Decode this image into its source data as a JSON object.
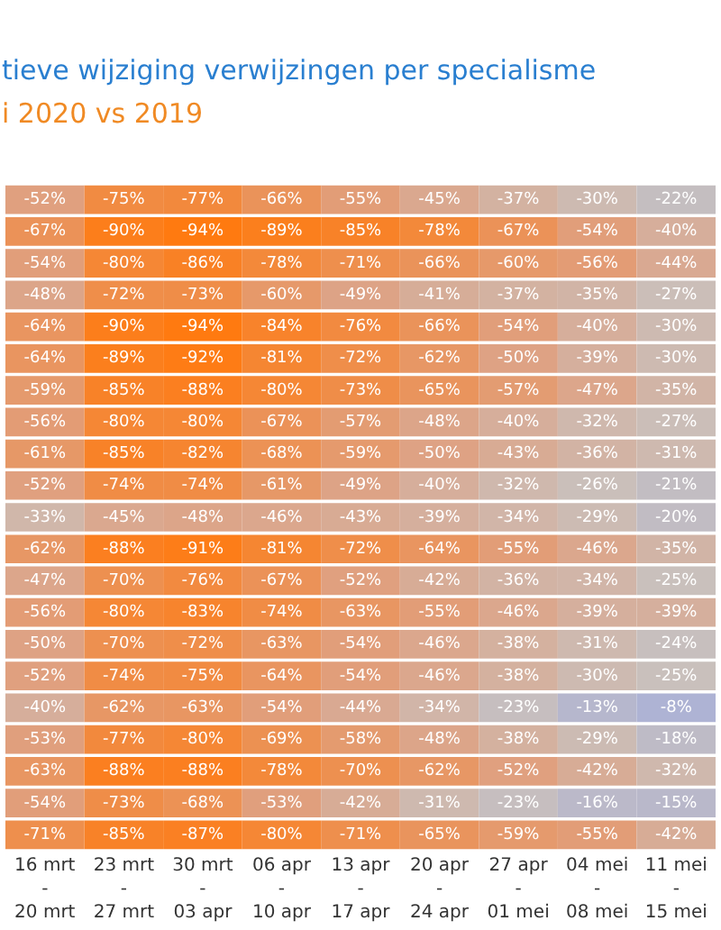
{
  "chart_data": {
    "type": "heatmap",
    "title": "tieve wijziging verwijzingen per specialisme",
    "subtitle": "i 2020 vs 2019",
    "categories": [
      "16 mrt\n-\n20 mrt",
      "23 mrt\n-\n27 mrt",
      "30 mrt\n-\n03 apr",
      "06 apr\n-\n10 apr",
      "13 apr\n-\n17 apr",
      "20 apr\n-\n24 apr",
      "27 apr\n-\n01 mei",
      "04 mei\n-\n08 mei",
      "11 mei\n-\n15 mei"
    ],
    "y_categories": [
      null,
      null,
      null,
      null,
      null,
      null,
      null,
      null,
      null,
      null,
      null,
      null,
      null,
      null,
      null,
      null,
      null,
      null,
      null,
      null,
      null
    ],
    "tick_labels": "x",
    "cells": [
      [
        -52,
        -75,
        -77,
        -66,
        -55,
        -45,
        -37,
        -30,
        -22
      ],
      [
        -67,
        -90,
        -94,
        -89,
        -85,
        -78,
        -67,
        -54,
        -40
      ],
      [
        -54,
        -80,
        -86,
        -78,
        -71,
        -66,
        -60,
        -56,
        -44
      ],
      [
        -48,
        -72,
        -73,
        -60,
        -49,
        -41,
        -37,
        -35,
        -27
      ],
      [
        -64,
        -90,
        -94,
        -84,
        -76,
        -66,
        -54,
        -40,
        -30
      ],
      [
        -64,
        -89,
        -92,
        -81,
        -72,
        -62,
        -50,
        -39,
        -30
      ],
      [
        -59,
        -85,
        -88,
        -80,
        -73,
        -65,
        -57,
        -47,
        -35
      ],
      [
        -56,
        -80,
        -80,
        -67,
        -57,
        -48,
        -40,
        -32,
        -27
      ],
      [
        -61,
        -85,
        -82,
        -68,
        -59,
        -50,
        -43,
        -36,
        -31
      ],
      [
        -52,
        -74,
        -74,
        -61,
        -49,
        -40,
        -32,
        -26,
        -21
      ],
      [
        -33,
        -45,
        -48,
        -46,
        -43,
        -39,
        -34,
        -29,
        -20
      ],
      [
        -62,
        -88,
        -91,
        -81,
        -72,
        -64,
        -55,
        -46,
        -35
      ],
      [
        -47,
        -70,
        -76,
        -67,
        -52,
        -42,
        -36,
        -34,
        -25
      ],
      [
        -56,
        -80,
        -83,
        -74,
        -63,
        -55,
        -46,
        -39,
        -39
      ],
      [
        -50,
        -70,
        -72,
        -63,
        -54,
        -46,
        -38,
        -31,
        -24
      ],
      [
        -52,
        -74,
        -75,
        -64,
        -54,
        -46,
        -38,
        -30,
        -25
      ],
      [
        -40,
        -62,
        -63,
        -54,
        -44,
        -34,
        -23,
        -13,
        -8
      ],
      [
        -53,
        -77,
        -80,
        -69,
        -58,
        -48,
        -38,
        -29,
        -18
      ],
      [
        -63,
        -88,
        -88,
        -78,
        -70,
        -62,
        -52,
        -42,
        -32
      ],
      [
        -54,
        -73,
        -68,
        -53,
        -42,
        -31,
        -23,
        -16,
        -15
      ],
      [
        -71,
        -85,
        -87,
        -80,
        -71,
        -65,
        -59,
        -55,
        -42
      ]
    ],
    "cell_labels": [
      [
        "-52%",
        "-75%",
        "-77%",
        "-66%",
        "-55%",
        "-45%",
        "-37%",
        "-30%",
        "-22%"
      ],
      [
        "-67%",
        "-90%",
        "-94%",
        "-89%",
        "-85%",
        "-78%",
        "-67%",
        "-54%",
        "-40%"
      ],
      [
        "-54%",
        "-80%",
        "-86%",
        "-78%",
        "-71%",
        "-66%",
        "-60%",
        "-56%",
        "-44%"
      ],
      [
        "-48%",
        "-72%",
        "-73%",
        "-60%",
        "-49%",
        "-41%",
        "-37%",
        "-35%",
        "-27%"
      ],
      [
        "-64%",
        "-90%",
        "-94%",
        "-84%",
        "-76%",
        "-66%",
        "-54%",
        "-40%",
        "-30%"
      ],
      [
        "-64%",
        "-89%",
        "-92%",
        "-81%",
        "-72%",
        "-62%",
        "-50%",
        "-39%",
        "-30%"
      ],
      [
        "-59%",
        "-85%",
        "-88%",
        "-80%",
        "-73%",
        "-65%",
        "-57%",
        "-47%",
        "-35%"
      ],
      [
        "-56%",
        "-80%",
        "-80%",
        "-67%",
        "-57%",
        "-48%",
        "-40%",
        "-32%",
        "-27%"
      ],
      [
        "-61%",
        "-85%",
        "-82%",
        "-68%",
        "-59%",
        "-50%",
        "-43%",
        "-36%",
        "-31%"
      ],
      [
        "-52%",
        "-74%",
        "-74%",
        "-61%",
        "-49%",
        "-40%",
        "-32%",
        "-26%",
        "-21%"
      ],
      [
        "-33%",
        "-45%",
        "-48%",
        "-46%",
        "-43%",
        "-39%",
        "-34%",
        "-29%",
        "-20%"
      ],
      [
        "-62%",
        "-88%",
        "-91%",
        "-81%",
        "-72%",
        "-64%",
        "-55%",
        "-46%",
        "-35%"
      ],
      [
        "-47%",
        "-70%",
        "-76%",
        "-67%",
        "-52%",
        "-42%",
        "-36%",
        "-34%",
        "-25%"
      ],
      [
        "-56%",
        "-80%",
        "-83%",
        "-74%",
        "-63%",
        "-55%",
        "-46%",
        "-39%",
        "-39%"
      ],
      [
        "-50%",
        "-70%",
        "-72%",
        "-63%",
        "-54%",
        "-46%",
        "-38%",
        "-31%",
        "-24%"
      ],
      [
        "-52%",
        "-74%",
        "-75%",
        "-64%",
        "-54%",
        "-46%",
        "-38%",
        "-30%",
        "-25%"
      ],
      [
        "-40%",
        "-62%",
        "-63%",
        "-54%",
        "-44%",
        "-34%",
        "-23%",
        "-13%",
        "-8%"
      ],
      [
        "-53%",
        "-77%",
        "-80%",
        "-69%",
        "-58%",
        "-48%",
        "-38%",
        "-29%",
        "-18%"
      ],
      [
        "-63%",
        "-88%",
        "-88%",
        "-78%",
        "-70%",
        "-62%",
        "-52%",
        "-42%",
        "-32%"
      ],
      [
        "-54%",
        "-73%",
        "-68%",
        "-53%",
        "-42%",
        "-31%",
        "-23%",
        "-16%",
        "-15%"
      ],
      [
        "-71%",
        "-85%",
        "-87%",
        "-80%",
        "-71%",
        "-65%",
        "-59%",
        "-55%",
        "-42%"
      ]
    ]
  }
}
